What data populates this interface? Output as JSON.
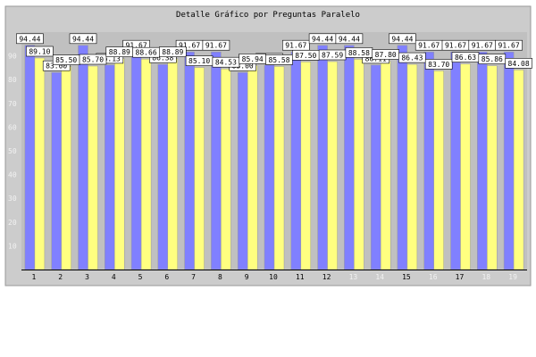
{
  "chart_data": {
    "type": "bar",
    "title": "Detalle Gráfico por Preguntas Paralelo",
    "xlabel": "",
    "ylabel": "",
    "categories": [
      "1",
      "2",
      "3",
      "4",
      "5",
      "6",
      "7",
      "8",
      "9",
      "10",
      "11",
      "12",
      "13",
      "14",
      "15",
      "16",
      "17",
      "18",
      "19"
    ],
    "series": [
      {
        "color": "#8080ff",
        "values": [
          94.44,
          83.0,
          94.44,
          86.13,
          91.67,
          86.38,
          91.67,
          91.67,
          83.0,
          86.11,
          91.67,
          94.44,
          94.44,
          86.11,
          94.44,
          91.67,
          91.67,
          91.67,
          91.67
        ]
      },
      {
        "color": "#ffff80",
        "values": [
          89.1,
          85.5,
          85.7,
          88.89,
          88.66,
          88.89,
          85.1,
          84.53,
          85.94,
          85.58,
          87.5,
          87.59,
          88.58,
          87.8,
          86.43,
          83.7,
          86.63,
          85.86,
          84.08
        ]
      }
    ],
    "ylim": [
      0,
      100
    ],
    "yticks": [
      10,
      20,
      30,
      40,
      50,
      60,
      70,
      80,
      90
    ],
    "grid": false,
    "legend": "none",
    "colors": {
      "plot_bg": "#c0c0c0",
      "frame_bg": "#cccccc",
      "label_box": "#ffffff"
    }
  }
}
